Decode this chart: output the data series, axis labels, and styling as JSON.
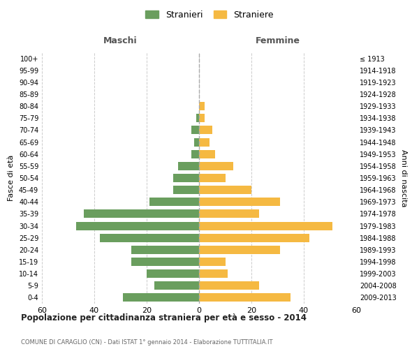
{
  "age_groups": [
    "0-4",
    "5-9",
    "10-14",
    "15-19",
    "20-24",
    "25-29",
    "30-34",
    "35-39",
    "40-44",
    "45-49",
    "50-54",
    "55-59",
    "60-64",
    "65-69",
    "70-74",
    "75-79",
    "80-84",
    "85-89",
    "90-94",
    "95-99",
    "100+"
  ],
  "birth_years": [
    "2009-2013",
    "2004-2008",
    "1999-2003",
    "1994-1998",
    "1989-1993",
    "1984-1988",
    "1979-1983",
    "1974-1978",
    "1969-1973",
    "1964-1968",
    "1959-1963",
    "1954-1958",
    "1949-1953",
    "1944-1948",
    "1939-1943",
    "1934-1938",
    "1929-1933",
    "1924-1928",
    "1919-1923",
    "1914-1918",
    "≤ 1913"
  ],
  "maschi": [
    29,
    17,
    20,
    26,
    26,
    38,
    47,
    44,
    19,
    10,
    10,
    8,
    3,
    2,
    3,
    1,
    0,
    0,
    0,
    0,
    0
  ],
  "femmine": [
    35,
    23,
    11,
    10,
    31,
    42,
    51,
    23,
    31,
    20,
    10,
    13,
    6,
    4,
    5,
    2,
    2,
    0,
    0,
    0,
    0
  ],
  "color_maschi": "#6a9e5e",
  "color_femmine": "#f5b942",
  "title": "Popolazione per cittadinanza straniera per età e sesso - 2014",
  "subtitle": "COMUNE DI CARAGLIO (CN) - Dati ISTAT 1° gennaio 2014 - Elaborazione TUTTITALIA.IT",
  "xlabel_left": "Maschi",
  "xlabel_right": "Femmine",
  "ylabel_left": "Fasce di età",
  "ylabel_right": "Anni di nascita",
  "legend_maschi": "Stranieri",
  "legend_femmine": "Straniere",
  "xlim": 60,
  "background_color": "#ffffff",
  "grid_color": "#cccccc"
}
